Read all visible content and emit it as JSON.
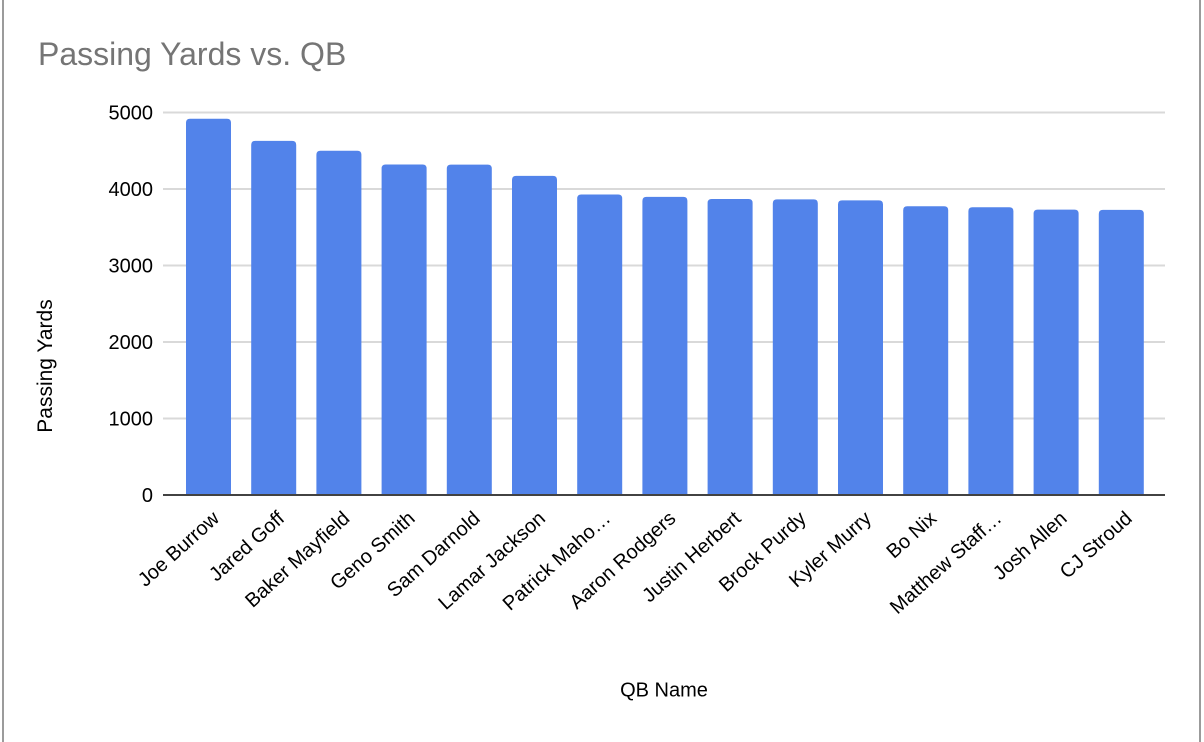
{
  "window": {
    "background": "#ffffff",
    "edge_border_color": "#9b9b9b"
  },
  "chart_data": {
    "type": "bar",
    "title": "Passing Yards vs. QB",
    "xlabel": "QB Name",
    "ylabel": "Passing Yards",
    "categories": [
      "Joe Burrow",
      "Jared Goff",
      "Baker Mayfield",
      "Geno Smith",
      "Sam Darnold",
      "Lamar Jackson",
      "Patrick Maho…",
      "Aaron Rodgers",
      "Justin Herbert",
      "Brock Purdy",
      "Kyler Murry",
      "Bo Nix",
      "Matthew Staff…",
      "Josh Allen",
      "CJ Stroud"
    ],
    "values": [
      4918,
      4629,
      4500,
      4320,
      4319,
      4172,
      3928,
      3897,
      3870,
      3864,
      3851,
      3775,
      3762,
      3731,
      3727
    ],
    "ylim": [
      0,
      5000
    ],
    "yticks": [
      0,
      1000,
      2000,
      3000,
      4000,
      5000
    ],
    "grid": true,
    "legend": "none",
    "bar_color": "#5283EA",
    "title_color": "#757575",
    "gridline_color": "#d9d9d9",
    "baseline_color": "#424242",
    "label_rotation_deg": -42
  }
}
